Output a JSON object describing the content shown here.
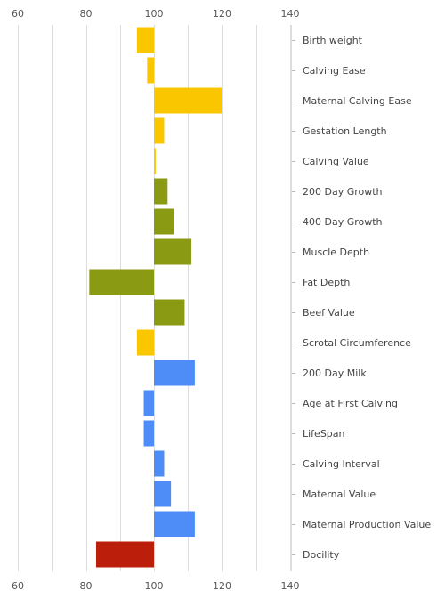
{
  "chart_data": {
    "type": "bar",
    "orientation": "horizontal",
    "baseline": 100,
    "xlim": [
      60,
      140
    ],
    "x_ticks": [
      "60",
      "80",
      "100",
      "120",
      "140"
    ],
    "grid": true,
    "categories": [
      "Birth weight",
      "Calving Ease",
      "Maternal Calving Ease",
      "Gestation Length",
      "Calving Value",
      "200 Day Growth",
      "400 Day Growth",
      "Muscle Depth",
      "Fat Depth",
      "Beef Value",
      "Scrotal Circumference",
      "200 Day Milk",
      "Age at First Calving",
      "LifeSpan",
      "Calving Interval",
      "Maternal Value",
      "Maternal Production Value",
      "Docility"
    ],
    "values": [
      95,
      98,
      120,
      103,
      100.5,
      104,
      106,
      111,
      81,
      109,
      95,
      112,
      97,
      97,
      103,
      105,
      112,
      83
    ],
    "bar_colors": [
      "#F9C600",
      "#F9C600",
      "#F9C600",
      "#F9C600",
      "#F9C600",
      "#8A9A12",
      "#8A9A12",
      "#8A9A12",
      "#8A9A12",
      "#8A9A12",
      "#F9C600",
      "#4E8CF7",
      "#4E8CF7",
      "#4E8CF7",
      "#4E8CF7",
      "#4E8CF7",
      "#4E8CF7",
      "#BB1E0B"
    ],
    "gridline_color": "#DDDDDD"
  }
}
